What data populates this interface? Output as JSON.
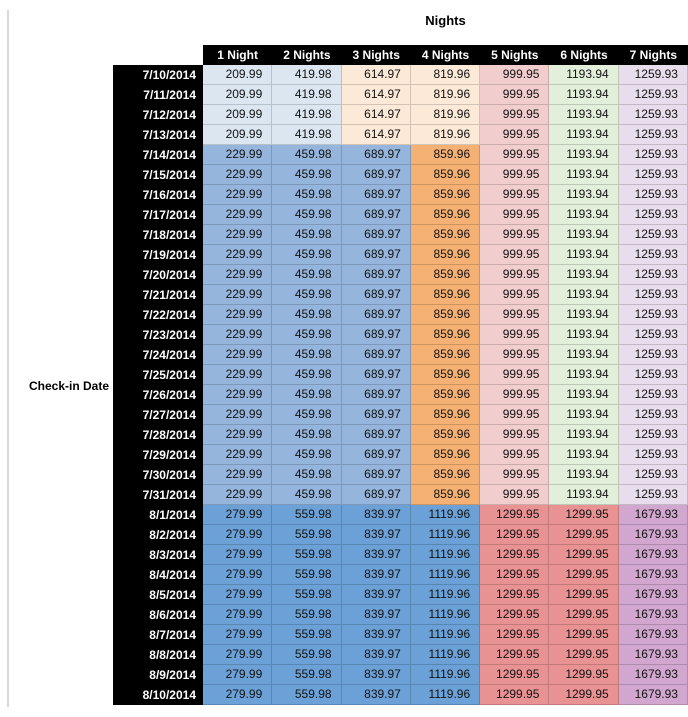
{
  "page": {
    "title": "Nights",
    "row_axis_label": "Check-in Date"
  },
  "styles": {
    "header_bg": "#000000",
    "header_text": "#ffffff",
    "tier_colors": {
      "t1": [
        "#dbe6f1",
        "#dbe6f1",
        "#fce9d8",
        "#fce9d8",
        "#f2cdcd",
        "#e2efdb",
        "#e8ddec"
      ],
      "t2": [
        "#95b5dc",
        "#95b5dc",
        "#95b5dc",
        "#f4b173",
        "#f2cdcd",
        "#e2efdb",
        "#e8ddec"
      ],
      "t3": [
        "#6ba1d6",
        "#6ba1d6",
        "#6ba1d6",
        "#6ba1d6",
        "#e99293",
        "#e99293",
        "#d1a7cf"
      ]
    }
  },
  "chart_data": {
    "type": "table",
    "title": "Nights",
    "row_axis_label": "Check-in Date",
    "columns": [
      "1 Night",
      "2 Nights",
      "3 Nights",
      "4 Nights",
      "5 Nights",
      "6 Nights",
      "7 Nights"
    ],
    "rows": [
      {
        "date": "7/10/2014",
        "tier": "t1",
        "values": [
          209.99,
          419.98,
          614.97,
          819.96,
          999.95,
          1193.94,
          1259.93
        ]
      },
      {
        "date": "7/11/2014",
        "tier": "t1",
        "values": [
          209.99,
          419.98,
          614.97,
          819.96,
          999.95,
          1193.94,
          1259.93
        ]
      },
      {
        "date": "7/12/2014",
        "tier": "t1",
        "values": [
          209.99,
          419.98,
          614.97,
          819.96,
          999.95,
          1193.94,
          1259.93
        ]
      },
      {
        "date": "7/13/2014",
        "tier": "t1",
        "values": [
          209.99,
          419.98,
          614.97,
          819.96,
          999.95,
          1193.94,
          1259.93
        ]
      },
      {
        "date": "7/14/2014",
        "tier": "t2",
        "values": [
          229.99,
          459.98,
          689.97,
          859.96,
          999.95,
          1193.94,
          1259.93
        ]
      },
      {
        "date": "7/15/2014",
        "tier": "t2",
        "values": [
          229.99,
          459.98,
          689.97,
          859.96,
          999.95,
          1193.94,
          1259.93
        ]
      },
      {
        "date": "7/16/2014",
        "tier": "t2",
        "values": [
          229.99,
          459.98,
          689.97,
          859.96,
          999.95,
          1193.94,
          1259.93
        ]
      },
      {
        "date": "7/17/2014",
        "tier": "t2",
        "values": [
          229.99,
          459.98,
          689.97,
          859.96,
          999.95,
          1193.94,
          1259.93
        ]
      },
      {
        "date": "7/18/2014",
        "tier": "t2",
        "values": [
          229.99,
          459.98,
          689.97,
          859.96,
          999.95,
          1193.94,
          1259.93
        ]
      },
      {
        "date": "7/19/2014",
        "tier": "t2",
        "values": [
          229.99,
          459.98,
          689.97,
          859.96,
          999.95,
          1193.94,
          1259.93
        ]
      },
      {
        "date": "7/20/2014",
        "tier": "t2",
        "values": [
          229.99,
          459.98,
          689.97,
          859.96,
          999.95,
          1193.94,
          1259.93
        ]
      },
      {
        "date": "7/21/2014",
        "tier": "t2",
        "values": [
          229.99,
          459.98,
          689.97,
          859.96,
          999.95,
          1193.94,
          1259.93
        ]
      },
      {
        "date": "7/22/2014",
        "tier": "t2",
        "values": [
          229.99,
          459.98,
          689.97,
          859.96,
          999.95,
          1193.94,
          1259.93
        ]
      },
      {
        "date": "7/23/2014",
        "tier": "t2",
        "values": [
          229.99,
          459.98,
          689.97,
          859.96,
          999.95,
          1193.94,
          1259.93
        ]
      },
      {
        "date": "7/24/2014",
        "tier": "t2",
        "values": [
          229.99,
          459.98,
          689.97,
          859.96,
          999.95,
          1193.94,
          1259.93
        ]
      },
      {
        "date": "7/25/2014",
        "tier": "t2",
        "values": [
          229.99,
          459.98,
          689.97,
          859.96,
          999.95,
          1193.94,
          1259.93
        ]
      },
      {
        "date": "7/26/2014",
        "tier": "t2",
        "values": [
          229.99,
          459.98,
          689.97,
          859.96,
          999.95,
          1193.94,
          1259.93
        ]
      },
      {
        "date": "7/27/2014",
        "tier": "t2",
        "values": [
          229.99,
          459.98,
          689.97,
          859.96,
          999.95,
          1193.94,
          1259.93
        ]
      },
      {
        "date": "7/28/2014",
        "tier": "t2",
        "values": [
          229.99,
          459.98,
          689.97,
          859.96,
          999.95,
          1193.94,
          1259.93
        ]
      },
      {
        "date": "7/29/2014",
        "tier": "t2",
        "values": [
          229.99,
          459.98,
          689.97,
          859.96,
          999.95,
          1193.94,
          1259.93
        ]
      },
      {
        "date": "7/30/2014",
        "tier": "t2",
        "values": [
          229.99,
          459.98,
          689.97,
          859.96,
          999.95,
          1193.94,
          1259.93
        ]
      },
      {
        "date": "7/31/2014",
        "tier": "t2",
        "values": [
          229.99,
          459.98,
          689.97,
          859.96,
          999.95,
          1193.94,
          1259.93
        ]
      },
      {
        "date": "8/1/2014",
        "tier": "t3",
        "values": [
          279.99,
          559.98,
          839.97,
          1119.96,
          1299.95,
          1299.95,
          1679.93
        ]
      },
      {
        "date": "8/2/2014",
        "tier": "t3",
        "values": [
          279.99,
          559.98,
          839.97,
          1119.96,
          1299.95,
          1299.95,
          1679.93
        ]
      },
      {
        "date": "8/3/2014",
        "tier": "t3",
        "values": [
          279.99,
          559.98,
          839.97,
          1119.96,
          1299.95,
          1299.95,
          1679.93
        ]
      },
      {
        "date": "8/4/2014",
        "tier": "t3",
        "values": [
          279.99,
          559.98,
          839.97,
          1119.96,
          1299.95,
          1299.95,
          1679.93
        ]
      },
      {
        "date": "8/5/2014",
        "tier": "t3",
        "values": [
          279.99,
          559.98,
          839.97,
          1119.96,
          1299.95,
          1299.95,
          1679.93
        ]
      },
      {
        "date": "8/6/2014",
        "tier": "t3",
        "values": [
          279.99,
          559.98,
          839.97,
          1119.96,
          1299.95,
          1299.95,
          1679.93
        ]
      },
      {
        "date": "8/7/2014",
        "tier": "t3",
        "values": [
          279.99,
          559.98,
          839.97,
          1119.96,
          1299.95,
          1299.95,
          1679.93
        ]
      },
      {
        "date": "8/8/2014",
        "tier": "t3",
        "values": [
          279.99,
          559.98,
          839.97,
          1119.96,
          1299.95,
          1299.95,
          1679.93
        ]
      },
      {
        "date": "8/9/2014",
        "tier": "t3",
        "values": [
          279.99,
          559.98,
          839.97,
          1119.96,
          1299.95,
          1299.95,
          1679.93
        ]
      },
      {
        "date": "8/10/2014",
        "tier": "t3",
        "values": [
          279.99,
          559.98,
          839.97,
          1119.96,
          1299.95,
          1299.95,
          1679.93
        ]
      }
    ]
  }
}
